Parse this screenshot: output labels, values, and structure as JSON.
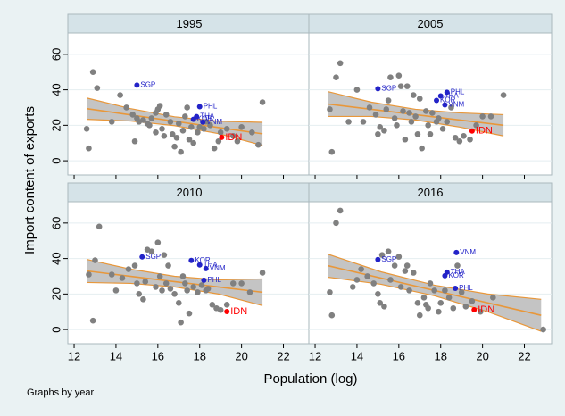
{
  "y_label": "Import content of exports",
  "x_label": "Population (log)",
  "note": "Graphs by year",
  "axes": {
    "xlim": [
      11.7,
      23.3
    ],
    "xticks": [
      12,
      14,
      16,
      18,
      20,
      22
    ],
    "ylim": [
      -8,
      72
    ],
    "yticks": [
      0,
      20,
      40,
      60
    ]
  },
  "chart_data": [
    {
      "type": "scatter",
      "title": "1995",
      "color": "#808080",
      "x": [
        12.6,
        12.7,
        12.9,
        13.1,
        14.2,
        14.5,
        14.8,
        15.0,
        15.1,
        15.3,
        15.5,
        15.6,
        15.7,
        15.9,
        16.0,
        16.1,
        16.2,
        16.4,
        16.6,
        16.7,
        16.9,
        17.0,
        17.2,
        17.3,
        17.4,
        17.5,
        17.6,
        17.7,
        17.9,
        18.0,
        18.2,
        18.3,
        18.5,
        18.7,
        18.9,
        19.0,
        19.3,
        19.6,
        19.8,
        20.0,
        20.5,
        20.8,
        21.0,
        15.9,
        16.3,
        16.8,
        17.1,
        14.9,
        13.8
      ],
      "y": [
        18,
        7,
        50,
        41,
        37,
        30,
        26,
        24,
        22,
        23,
        21,
        20,
        24,
        27,
        29,
        31,
        18,
        26,
        22,
        15,
        13,
        21,
        17,
        25,
        30,
        12,
        19,
        10,
        16,
        19,
        18,
        22,
        20,
        7,
        11,
        16,
        18,
        14,
        11,
        19,
        16,
        9,
        33,
        16,
        14,
        8,
        5,
        11,
        22
      ],
      "labeled": [
        {
          "label": "SGP",
          "x": 15.0,
          "y": 42.6,
          "color": "#2323c8"
        },
        {
          "label": "PHL",
          "x": 18.0,
          "y": 30.5,
          "color": "#2323c8"
        },
        {
          "label": "THA",
          "x": 17.85,
          "y": 24.9,
          "color": "#2323c8"
        },
        {
          "label": "KOR",
          "x": 17.7,
          "y": 23.4,
          "color": "#2323c8"
        },
        {
          "label": "VNM",
          "x": 18.15,
          "y": 21.8,
          "color": "#2323c8"
        },
        {
          "label": "IDN",
          "x": 19.05,
          "y": 13.2,
          "color": "#ff0000"
        }
      ],
      "fit": {
        "x": [
          12.6,
          21.0
        ],
        "y": [
          29.4,
          15.2
        ],
        "color": "#e8973a"
      },
      "band": {
        "x": [
          12.6,
          14.7,
          16.8,
          18.9,
          21.0
        ],
        "upper": [
          35.4,
          29.4,
          24.8,
          22.3,
          21.7
        ],
        "lower": [
          23.4,
          22.4,
          19.8,
          15.3,
          8.7
        ],
        "color": "#c4c4c4"
      }
    },
    {
      "type": "scatter",
      "title": "2005",
      "color": "#808080",
      "x": [
        12.7,
        12.8,
        13.0,
        13.2,
        14.0,
        14.3,
        14.6,
        14.9,
        15.1,
        15.3,
        15.4,
        15.6,
        15.8,
        16.0,
        16.1,
        16.2,
        16.4,
        16.5,
        16.6,
        16.8,
        16.9,
        17.1,
        17.3,
        17.4,
        17.5,
        17.6,
        17.8,
        17.9,
        18.1,
        18.3,
        18.5,
        18.7,
        18.9,
        19.1,
        19.4,
        19.7,
        20.0,
        20.4,
        21.0,
        15.0,
        15.5,
        16.3,
        13.6,
        16.7,
        17.0,
        15.9
      ],
      "y": [
        29,
        5,
        47,
        55,
        40,
        22,
        30,
        26,
        19,
        17,
        29,
        47,
        24,
        48,
        42,
        28,
        42,
        27,
        22,
        25,
        15,
        7,
        28,
        20,
        15,
        27,
        22,
        24,
        18,
        22,
        30,
        13,
        11,
        14,
        12,
        20,
        25,
        25,
        37,
        15,
        34,
        12,
        22,
        37,
        35,
        20
      ],
      "labeled": [
        {
          "label": "SGP",
          "x": 15.0,
          "y": 40.6,
          "color": "#2323c8"
        },
        {
          "label": "PHL",
          "x": 18.3,
          "y": 38.6,
          "color": "#2323c8"
        },
        {
          "label": "THA",
          "x": 18.0,
          "y": 36.5,
          "color": "#2323c8"
        },
        {
          "label": "KOR",
          "x": 17.8,
          "y": 34.0,
          "color": "#2323c8"
        },
        {
          "label": "VNM",
          "x": 18.2,
          "y": 31.5,
          "color": "#2323c8"
        },
        {
          "label": "IDN",
          "x": 19.5,
          "y": 16.8,
          "color": "#ff0000"
        }
      ],
      "fit": {
        "x": [
          12.6,
          21.0
        ],
        "y": [
          32,
          20
        ],
        "color": "#e8973a"
      },
      "band": {
        "x": [
          12.6,
          14.7,
          16.8,
          18.9,
          21.0
        ],
        "upper": [
          39,
          33,
          29,
          27,
          26
        ],
        "lower": [
          25,
          25,
          23,
          19,
          14
        ],
        "color": "#c4c4c4"
      }
    },
    {
      "type": "scatter",
      "title": "2010",
      "color": "#808080",
      "x": [
        12.7,
        12.9,
        13.0,
        13.2,
        14.0,
        14.3,
        14.6,
        14.9,
        15.1,
        15.3,
        15.4,
        15.5,
        15.7,
        15.9,
        16.0,
        16.1,
        16.3,
        16.4,
        16.6,
        16.8,
        17.0,
        17.1,
        17.3,
        17.4,
        17.5,
        17.7,
        17.9,
        18.1,
        18.3,
        18.6,
        18.8,
        19.0,
        19.3,
        19.6,
        20.0,
        20.4,
        21.0,
        15.0,
        16.5,
        17.2,
        13.8,
        16.2,
        18.4
      ],
      "y": [
        31,
        5,
        39,
        58,
        22,
        29,
        34,
        36,
        20,
        17,
        27,
        45,
        44,
        24,
        49,
        30,
        42,
        26,
        23,
        20,
        15,
        4,
        26,
        22,
        9,
        24,
        21,
        25,
        22,
        14,
        12,
        11,
        14,
        26,
        26,
        21,
        32,
        26,
        36,
        30,
        31,
        22,
        23
      ],
      "labeled": [
        {
          "label": "SGP",
          "x": 15.25,
          "y": 40.9,
          "color": "#2323c8"
        },
        {
          "label": "KOR",
          "x": 17.6,
          "y": 38.9,
          "color": "#2323c8"
        },
        {
          "label": "THA",
          "x": 18.0,
          "y": 36.4,
          "color": "#2323c8"
        },
        {
          "label": "VNM",
          "x": 18.3,
          "y": 34.3,
          "color": "#2323c8"
        },
        {
          "label": "PHL",
          "x": 18.2,
          "y": 27.8,
          "color": "#2323c8"
        },
        {
          "label": "IDN",
          "x": 19.3,
          "y": 10.1,
          "color": "#ff0000"
        }
      ],
      "fit": {
        "x": [
          12.6,
          21.0
        ],
        "y": [
          33,
          21
        ],
        "color": "#e8973a"
      },
      "band": {
        "x": [
          12.6,
          14.7,
          16.8,
          18.9,
          21.0
        ],
        "upper": [
          39.5,
          34,
          30,
          28,
          28.5
        ],
        "lower": [
          26.5,
          26,
          24,
          20,
          13.5
        ],
        "color": "#c4c4c4"
      }
    },
    {
      "type": "scatter",
      "title": "2016",
      "color": "#808080",
      "x": [
        12.7,
        12.8,
        13.0,
        13.2,
        13.8,
        14.2,
        14.5,
        14.8,
        15.0,
        15.1,
        15.2,
        15.3,
        15.5,
        15.6,
        15.8,
        16.0,
        16.1,
        16.3,
        16.5,
        16.7,
        16.9,
        17.0,
        17.2,
        17.4,
        17.5,
        17.7,
        17.9,
        18.0,
        18.2,
        18.4,
        18.6,
        18.8,
        19.0,
        19.2,
        19.5,
        19.9,
        20.5,
        22.9,
        14.0,
        16.4,
        17.3
      ],
      "y": [
        21,
        8,
        60,
        67,
        24,
        34,
        30,
        26,
        20,
        15,
        42,
        13,
        44,
        28,
        36,
        41,
        24,
        33,
        22,
        32,
        15,
        8,
        18,
        12,
        26,
        22,
        10,
        15,
        22,
        18,
        12,
        36,
        21,
        13,
        16,
        10,
        18,
        0,
        28,
        36,
        14
      ],
      "labeled": [
        {
          "label": "SGP",
          "x": 15.0,
          "y": 39.4,
          "color": "#2323c8"
        },
        {
          "label": "VNM",
          "x": 18.75,
          "y": 43.4,
          "color": "#2323c8"
        },
        {
          "label": "THA",
          "x": 18.3,
          "y": 32.3,
          "color": "#2323c8"
        },
        {
          "label": "KOR",
          "x": 18.2,
          "y": 30.3,
          "color": "#2323c8"
        },
        {
          "label": "PHL",
          "x": 18.7,
          "y": 23.2,
          "color": "#2323c8"
        },
        {
          "label": "IDN",
          "x": 19.6,
          "y": 11.1,
          "color": "#ff0000"
        }
      ],
      "fit": {
        "x": [
          12.6,
          22.8
        ],
        "y": [
          36,
          8
        ],
        "color": "#e8973a"
      },
      "band": {
        "x": [
          12.6,
          15.15,
          17.7,
          20.25,
          22.8
        ],
        "upper": [
          42.5,
          32.5,
          25,
          20,
          17
        ],
        "lower": [
          29.5,
          25.5,
          19,
          10,
          -1
        ],
        "color": "#c4c4c4"
      }
    }
  ]
}
